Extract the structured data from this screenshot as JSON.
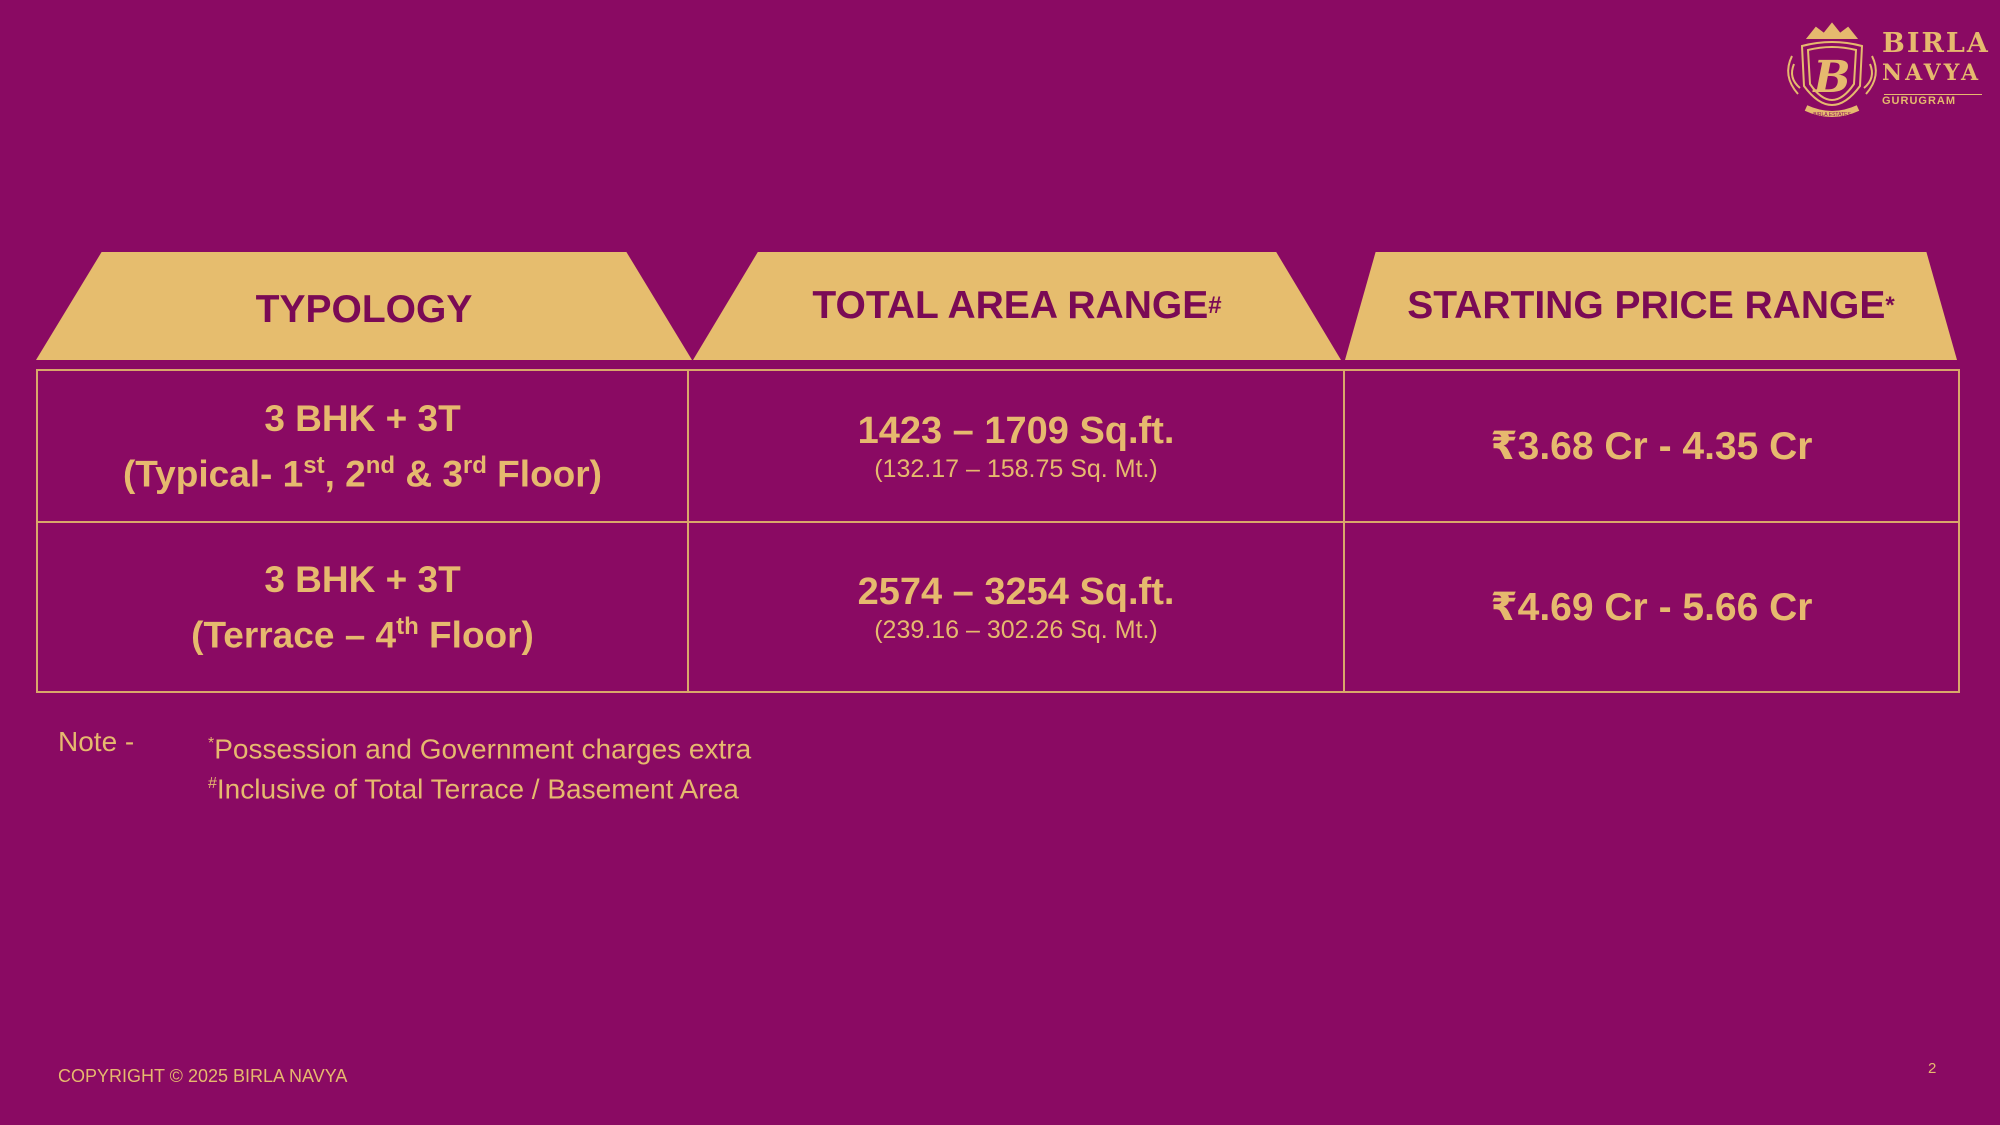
{
  "brand": {
    "line1": "BIRLA",
    "line2": "NAVYA",
    "line3": "GURUGRAM",
    "crest_text": "BIRLA ESTATES",
    "crest_letter": "B"
  },
  "headers": {
    "typology": "TYPOLOGY",
    "area": "TOTAL  AREA RANGE",
    "area_mark": "#",
    "price": "STARTING PRICE RANGE",
    "price_mark": "*"
  },
  "rows": [
    {
      "typology_line1": "3 BHK + 3T",
      "typology_line2": {
        "a": "(Typical- 1",
        "a_sup": "st",
        "b": ", 2",
        "b_sup": "nd",
        "c": " & 3",
        "c_sup": "rd",
        "d": " Floor)"
      },
      "area_main": "1423 – 1709 Sq.ft.",
      "area_sub": "(132.17 – 158.75 Sq. Mt.)",
      "price": "₹3.68  Cr - 4.35 Cr"
    },
    {
      "typology_line1": "3 BHK + 3T",
      "typology_line2": {
        "a": "(Terrace – 4",
        "a_sup": "th",
        "b": " Floor)"
      },
      "area_main": "2574 – 3254 Sq.ft.",
      "area_sub": "(239.16 – 302.26 Sq. Mt.)",
      "price": "₹4.69 Cr -  5.66 Cr"
    }
  ],
  "note": {
    "label": "Note -",
    "line1_mark": "*",
    "line1": "Possession and Government charges extra",
    "line2_mark": "#",
    "line2": "Inclusive of Total Terrace / Basement Area"
  },
  "footer": {
    "copyright": "COPYRIGHT © 2025 BIRLA NAVYA",
    "page_number": "2"
  },
  "colors": {
    "background": "#8a0a63",
    "gold": "#e6bd6e",
    "header_text": "#7a0a55"
  },
  "icons": {
    "logo": "crest-logo-icon"
  }
}
